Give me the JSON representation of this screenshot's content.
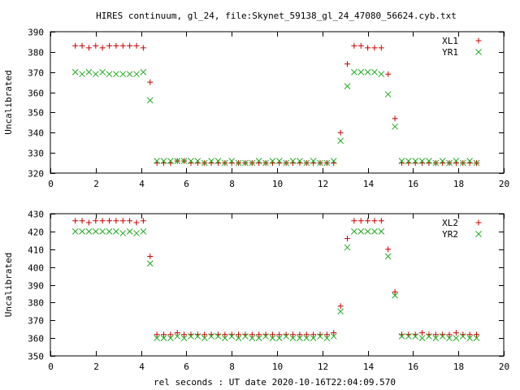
{
  "title": "HIRES continuum, gl_24, file:Skynet_59138_gl_24_47080_56624.cyb.txt",
  "xlabel": "rel seconds : UT date 2020-10-16T22:04:09.570",
  "colors": {
    "plus_series": "#cc0000",
    "x_series": "#22aa22"
  },
  "chart_data": [
    {
      "type": "scatter",
      "ylabel": "Uncalibrated",
      "xlim": [
        0,
        20
      ],
      "ylim": [
        320,
        390
      ],
      "xticks": [
        0,
        2,
        4,
        6,
        8,
        10,
        12,
        14,
        16,
        18,
        20
      ],
      "yticks": [
        320,
        330,
        340,
        350,
        360,
        370,
        380,
        390
      ],
      "legend_position": "top-right",
      "grid": false,
      "series": [
        {
          "name": "XL1",
          "marker": "plus",
          "color": "#cc0000",
          "x": [
            1.1,
            1.4,
            1.7,
            2.0,
            2.3,
            2.6,
            2.9,
            3.2,
            3.5,
            3.8,
            4.1,
            4.4,
            4.7,
            5.0,
            5.3,
            5.6,
            5.9,
            6.2,
            6.5,
            6.8,
            7.1,
            7.4,
            7.7,
            8.0,
            8.3,
            8.6,
            8.9,
            9.2,
            9.5,
            9.8,
            10.1,
            10.4,
            10.7,
            11.0,
            11.3,
            11.6,
            11.9,
            12.2,
            12.5,
            12.8,
            13.1,
            13.4,
            13.7,
            14.0,
            14.3,
            14.6,
            14.9,
            15.2,
            15.5,
            15.8,
            16.1,
            16.4,
            16.7,
            17.0,
            17.3,
            17.6,
            17.9,
            18.2,
            18.5,
            18.8
          ],
          "y": [
            383,
            383,
            382,
            383,
            382,
            383,
            383,
            383,
            383,
            383,
            382,
            365,
            325,
            325,
            325,
            326,
            326,
            325,
            325,
            325,
            325,
            325,
            325,
            325,
            325,
            325,
            325,
            325,
            325,
            325,
            325,
            325,
            325,
            325,
            325,
            325,
            325,
            325,
            325,
            340,
            374,
            383,
            383,
            382,
            382,
            382,
            369,
            347,
            325,
            325,
            325,
            325,
            325,
            325,
            325,
            325,
            325,
            325,
            325,
            325
          ]
        },
        {
          "name": "YR1",
          "marker": "x",
          "color": "#22aa22",
          "x": [
            1.1,
            1.4,
            1.7,
            2.0,
            2.3,
            2.6,
            2.9,
            3.2,
            3.5,
            3.8,
            4.1,
            4.4,
            4.7,
            5.0,
            5.3,
            5.6,
            5.9,
            6.2,
            6.5,
            6.8,
            7.1,
            7.4,
            7.7,
            8.0,
            8.3,
            8.6,
            8.9,
            9.2,
            9.5,
            9.8,
            10.1,
            10.4,
            10.7,
            11.0,
            11.3,
            11.6,
            11.9,
            12.2,
            12.5,
            12.8,
            13.1,
            13.4,
            13.7,
            14.0,
            14.3,
            14.6,
            14.9,
            15.2,
            15.5,
            15.8,
            16.1,
            16.4,
            16.7,
            17.0,
            17.3,
            17.6,
            17.9,
            18.2,
            18.5,
            18.8
          ],
          "y": [
            370,
            369,
            370,
            369,
            370,
            369,
            369,
            369,
            369,
            369,
            370,
            356,
            326,
            326,
            326,
            326,
            326,
            326,
            326,
            325,
            326,
            326,
            325,
            326,
            325,
            325,
            325,
            326,
            325,
            326,
            326,
            325,
            326,
            326,
            325,
            326,
            325,
            325,
            326,
            336,
            363,
            370,
            370,
            370,
            370,
            369,
            359,
            343,
            326,
            326,
            326,
            326,
            326,
            325,
            326,
            325,
            326,
            325,
            326,
            325
          ]
        }
      ]
    },
    {
      "type": "scatter",
      "ylabel": "Uncalibrated",
      "xlim": [
        0,
        20
      ],
      "ylim": [
        350,
        430
      ],
      "xticks": [
        0,
        2,
        4,
        6,
        8,
        10,
        12,
        14,
        16,
        18,
        20
      ],
      "yticks": [
        350,
        360,
        370,
        380,
        390,
        400,
        410,
        420,
        430
      ],
      "legend_position": "top-right",
      "grid": false,
      "series": [
        {
          "name": "XL2",
          "marker": "plus",
          "color": "#cc0000",
          "x": [
            1.1,
            1.4,
            1.7,
            2.0,
            2.3,
            2.6,
            2.9,
            3.2,
            3.5,
            3.8,
            4.1,
            4.4,
            4.7,
            5.0,
            5.3,
            5.6,
            5.9,
            6.2,
            6.5,
            6.8,
            7.1,
            7.4,
            7.7,
            8.0,
            8.3,
            8.6,
            8.9,
            9.2,
            9.5,
            9.8,
            10.1,
            10.4,
            10.7,
            11.0,
            11.3,
            11.6,
            11.9,
            12.2,
            12.5,
            12.8,
            13.1,
            13.4,
            13.7,
            14.0,
            14.3,
            14.6,
            14.9,
            15.2,
            15.5,
            15.8,
            16.1,
            16.4,
            16.7,
            17.0,
            17.3,
            17.6,
            17.9,
            18.2,
            18.5,
            18.8
          ],
          "y": [
            426,
            426,
            425,
            426,
            426,
            426,
            426,
            426,
            426,
            425,
            426,
            406,
            362,
            362,
            362,
            363,
            362,
            362,
            362,
            362,
            362,
            362,
            362,
            362,
            362,
            362,
            362,
            362,
            362,
            362,
            362,
            362,
            362,
            362,
            362,
            362,
            362,
            362,
            363,
            378,
            416,
            426,
            426,
            426,
            426,
            426,
            410,
            386,
            362,
            362,
            362,
            363,
            362,
            362,
            362,
            362,
            363,
            362,
            362,
            362
          ]
        },
        {
          "name": "YR2",
          "marker": "x",
          "color": "#22aa22",
          "x": [
            1.1,
            1.4,
            1.7,
            2.0,
            2.3,
            2.6,
            2.9,
            3.2,
            3.5,
            3.8,
            4.1,
            4.4,
            4.7,
            5.0,
            5.3,
            5.6,
            5.9,
            6.2,
            6.5,
            6.8,
            7.1,
            7.4,
            7.7,
            8.0,
            8.3,
            8.6,
            8.9,
            9.2,
            9.5,
            9.8,
            10.1,
            10.4,
            10.7,
            11.0,
            11.3,
            11.6,
            11.9,
            12.2,
            12.5,
            12.8,
            13.1,
            13.4,
            13.7,
            14.0,
            14.3,
            14.6,
            14.9,
            15.2,
            15.5,
            15.8,
            16.1,
            16.4,
            16.7,
            17.0,
            17.3,
            17.6,
            17.9,
            18.2,
            18.5,
            18.8
          ],
          "y": [
            420,
            420,
            420,
            420,
            420,
            420,
            420,
            419,
            420,
            419,
            420,
            402,
            360,
            360,
            360,
            361,
            360,
            361,
            361,
            360,
            361,
            361,
            360,
            361,
            360,
            361,
            360,
            360,
            361,
            360,
            360,
            361,
            360,
            360,
            360,
            360,
            361,
            360,
            361,
            375,
            411,
            420,
            420,
            420,
            420,
            420,
            406,
            384,
            361,
            361,
            361,
            360,
            361,
            360,
            361,
            360,
            360,
            361,
            360,
            360
          ]
        }
      ]
    }
  ]
}
